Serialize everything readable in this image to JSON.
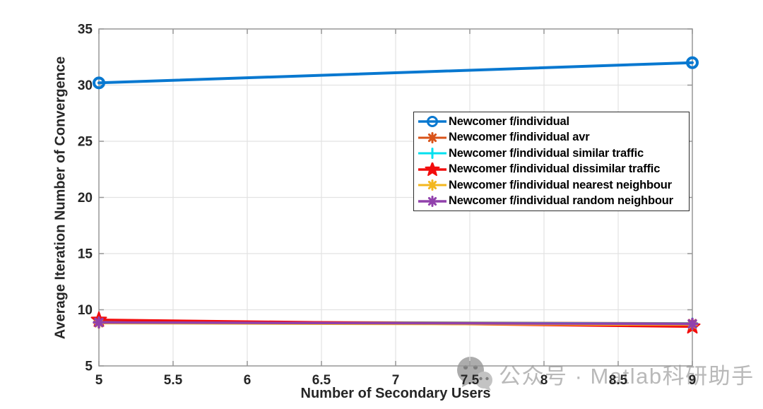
{
  "chart_data": {
    "type": "line",
    "x": [
      5,
      9
    ],
    "series": [
      {
        "name": "Newcomer f/individual",
        "values": [
          30.2,
          32.0
        ],
        "color": "#0878d0",
        "marker": "circle",
        "marker_size": 7,
        "line_width": 4
      },
      {
        "name": "Newcomer f/individual avr",
        "values": [
          8.95,
          8.8
        ],
        "color": "#d95319",
        "marker": "asterisk",
        "marker_size": 6.5,
        "line_width": 3
      },
      {
        "name": "Newcomer f/individual similar traffic",
        "values": [
          8.9,
          8.78
        ],
        "color": "#00e0ef",
        "marker": "plus",
        "marker_size": 7,
        "line_width": 3
      },
      {
        "name": "Newcomer f/individual dissimilar traffic",
        "values": [
          9.1,
          8.5
        ],
        "color": "#f20d0d",
        "marker": "star",
        "marker_size": 11,
        "line_width": 3.5
      },
      {
        "name": "Newcomer f/individual nearest neighbour",
        "values": [
          8.8,
          8.66
        ],
        "color": "#f3b71f",
        "marker": "asterisk",
        "marker_size": 6.5,
        "line_width": 3
      },
      {
        "name": "Newcomer f/individual random neighbour",
        "values": [
          8.87,
          8.74
        ],
        "color": "#9141ac",
        "marker": "asterisk",
        "marker_size": 7,
        "line_width": 3.5
      }
    ],
    "title": "",
    "xlabel": "Number of Secondary Users",
    "ylabel": "Average Iteration Number of Convergence",
    "xlim": [
      5,
      9
    ],
    "ylim": [
      5,
      35
    ],
    "xticks": [
      5,
      5.5,
      6,
      6.5,
      7,
      7.5,
      8,
      8.5,
      9
    ],
    "yticks": [
      5,
      10,
      15,
      20,
      25,
      30,
      35
    ],
    "grid": true,
    "legend_position": "inside upper right",
    "axis_color": "#979797",
    "grid_color": "#e2e2e2",
    "tick_label_color": "#262626"
  },
  "watermark": {
    "text": "公众号 · Matlab科研助手",
    "icon": "wechat-icon",
    "color": "#b9b9b9"
  }
}
